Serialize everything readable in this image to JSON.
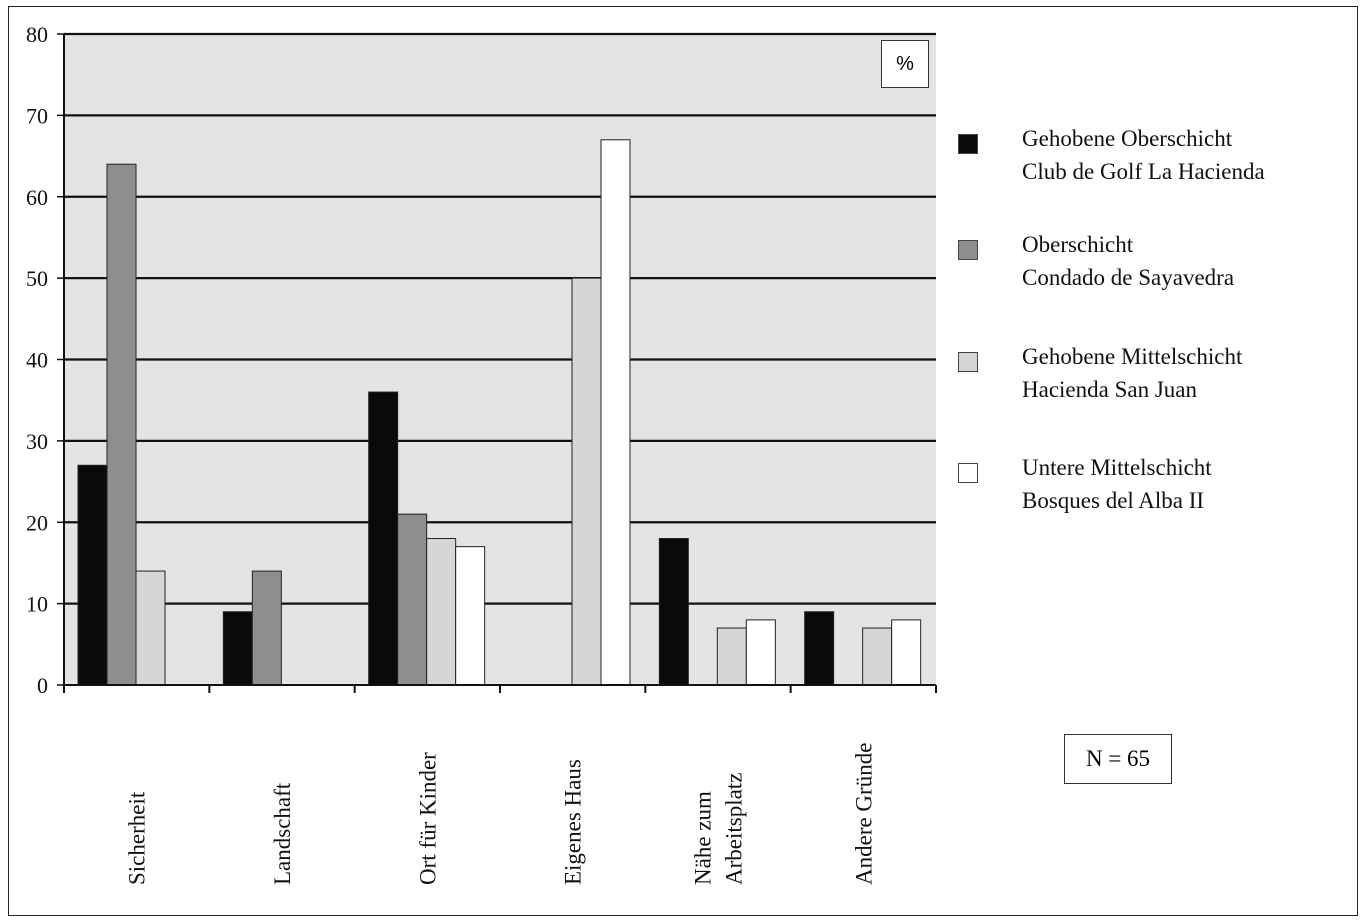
{
  "chart_data": {
    "type": "bar",
    "categories": [
      "Sicherheit",
      "Landschaft",
      "Ort für Kinder",
      "Eigenes Haus",
      "Nähe zum Arbeitsplatz",
      "Andere Gründe"
    ],
    "category_lines": [
      [
        "Sicherheit"
      ],
      [
        "Landschaft"
      ],
      [
        "Ort für Kinder"
      ],
      [
        "Eigenes Haus"
      ],
      [
        "Nähe zum",
        "Arbeitsplatz"
      ],
      [
        "Andere Gründe"
      ]
    ],
    "series": [
      {
        "name": "Gehobene Oberschicht Club de Golf La Hacienda",
        "name_lines": [
          "Gehobene Oberschicht",
          "Club de Golf La Hacienda"
        ],
        "color": "#0a0a0a",
        "values": [
          27,
          9,
          36,
          0,
          18,
          9
        ]
      },
      {
        "name": "Oberschicht Condado de Sayavedra",
        "name_lines": [
          "Oberschicht",
          "Condado de Sayavedra"
        ],
        "color": "#8e8e8e",
        "values": [
          64,
          14,
          21,
          0,
          0,
          0
        ]
      },
      {
        "name": "Gehobene Mittelschicht Hacienda San Juan",
        "name_lines": [
          "Gehobene Mittelschicht",
          "Hacienda San Juan"
        ],
        "color": "#d6d6d6",
        "values": [
          14,
          0,
          18,
          50,
          7,
          7
        ]
      },
      {
        "name": "Untere Mittelschicht Bosques del Alba II",
        "name_lines": [
          "Untere Mittelschicht",
          "Bosques del Alba II"
        ],
        "color": "#ffffff",
        "values": [
          0,
          0,
          17,
          67,
          8,
          8
        ]
      }
    ],
    "ylim": [
      0,
      80
    ],
    "yticks": [
      0,
      10,
      20,
      30,
      40,
      50,
      60,
      70,
      80
    ],
    "unit_label": "%",
    "annotation": "N = 65",
    "grid": true,
    "legend_position": "right",
    "plot_background": "#e4e4e4"
  }
}
